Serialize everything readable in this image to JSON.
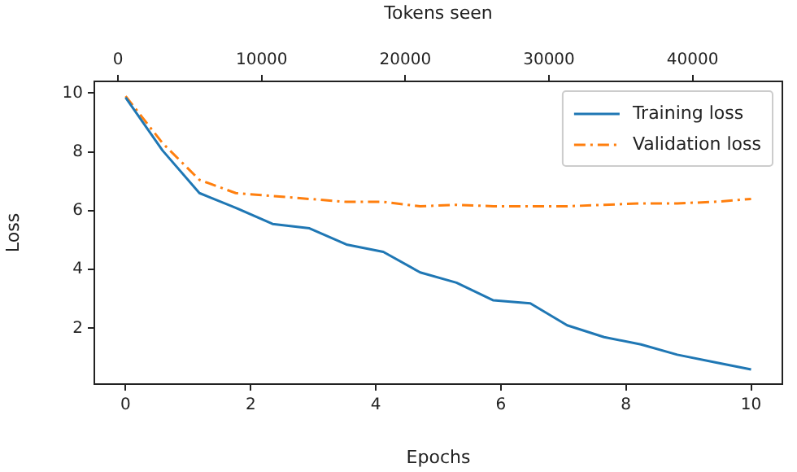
{
  "chart_data": {
    "type": "line",
    "xlabel": "Epochs",
    "ylabel": "Loss",
    "x2label": "Tokens seen",
    "x": [
      0,
      0.59,
      1.18,
      1.76,
      2.35,
      2.94,
      3.53,
      4.12,
      4.71,
      5.29,
      5.88,
      6.47,
      7.06,
      7.65,
      8.24,
      8.82,
      9.41,
      10
    ],
    "series": [
      {
        "name": "Training loss",
        "color": "#1f77b4",
        "line_style": "solid",
        "values": [
          9.85,
          8.05,
          6.6,
          6.1,
          5.55,
          5.4,
          4.85,
          4.6,
          3.9,
          3.55,
          2.95,
          2.85,
          2.1,
          1.7,
          1.45,
          1.1,
          0.85,
          0.6
        ]
      },
      {
        "name": "Validation loss",
        "color": "#ff7f0e",
        "line_style": "dashed",
        "values": [
          9.9,
          8.3,
          7.05,
          6.6,
          6.5,
          6.4,
          6.3,
          6.3,
          6.15,
          6.2,
          6.15,
          6.15,
          6.15,
          6.2,
          6.25,
          6.25,
          6.3,
          6.4
        ]
      }
    ],
    "xlim": [
      -0.5,
      10.5
    ],
    "xticks": [
      0,
      2,
      4,
      6,
      8,
      10
    ],
    "ylim": [
      0.1,
      10.4
    ],
    "yticks": [
      2,
      4,
      6,
      8,
      10
    ],
    "x2lim": [
      -1650,
      46250
    ],
    "x2ticks": [
      0,
      10000,
      20000,
      30000,
      40000
    ],
    "grid": false,
    "legend": "top right",
    "marker": "none"
  }
}
